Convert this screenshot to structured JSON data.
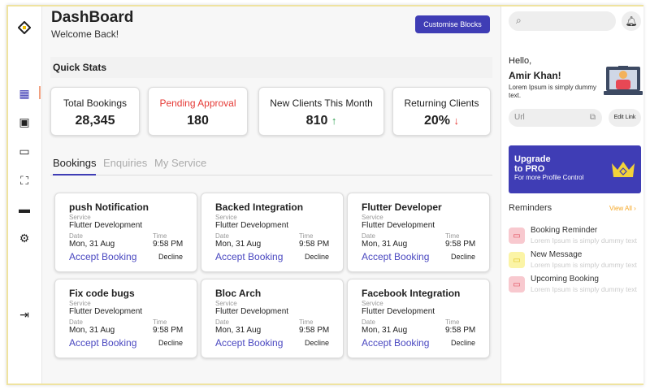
{
  "header": {
    "title": "DashBoard",
    "subtitle": "Welcome Back!",
    "customise_label": "Customise Blocks"
  },
  "sidebar": {
    "items": [
      "logo",
      "dashboard",
      "bookings",
      "calendar",
      "services",
      "messages",
      "settings",
      "logout"
    ],
    "active": "dashboard"
  },
  "quick_stats": {
    "title": "Quick Stats",
    "items": [
      {
        "label": "Total Bookings",
        "value": "28,345",
        "trend": ""
      },
      {
        "label": "Pending Approval",
        "value": "180",
        "trend": ""
      },
      {
        "label": "New Clients This Month",
        "value": "810",
        "trend": "up"
      },
      {
        "label": "Returning Clients",
        "value": "20%",
        "trend": "down"
      }
    ]
  },
  "tabs": [
    {
      "label": "Bookings",
      "active": true
    },
    {
      "label": "Enquiries"
    },
    {
      "label": "My Service"
    }
  ],
  "bookings": [
    {
      "title": "push Notification",
      "service_label": "Service",
      "service": "Flutter Development",
      "date_label": "Date",
      "date": "Mon, 31 Aug",
      "time_label": "Time",
      "time": "9:58 PM",
      "accept": "Accept Booking",
      "decline": "Decline"
    },
    {
      "title": "Backed Integration",
      "service_label": "Service",
      "service": "Flutter Development",
      "date_label": "Date",
      "date": "Mon, 31 Aug",
      "time_label": "Time",
      "time": "9:58 PM",
      "accept": "Accept Booking",
      "decline": "Decline"
    },
    {
      "title": "Flutter Developer",
      "service_label": "Service",
      "service": "Flutter Development",
      "date_label": "Date",
      "date": "Mon, 31 Aug",
      "time_label": "Time",
      "time": "9:58 PM",
      "accept": "Accept Booking",
      "decline": "Decline"
    },
    {
      "title": "Fix code bugs",
      "service_label": "Service",
      "service": "Flutter Development",
      "date_label": "Date",
      "date": "Mon, 31 Aug",
      "time_label": "Time",
      "time": "9:58 PM",
      "accept": "Accept Booking",
      "decline": "Decline"
    },
    {
      "title": "Bloc Arch",
      "service_label": "Service",
      "service": "Flutter Development",
      "date_label": "Date",
      "date": "Mon, 31 Aug",
      "time_label": "Time",
      "time": "9:58 PM",
      "accept": "Accept Booking",
      "decline": "Decline"
    },
    {
      "title": "Facebook Integration",
      "service_label": "Service",
      "service": "Flutter Development",
      "date_label": "Date",
      "date": "Mon, 31 Aug",
      "time_label": "Time",
      "time": "9:58 PM",
      "accept": "Accept Booking",
      "decline": "Decline"
    }
  ],
  "right": {
    "hello": "Hello,",
    "name": "Amir Khan!",
    "desc": "Lorem Ipsum is simply dummy text.",
    "url_placeholder": "Url",
    "edit_link": "Edit Link",
    "upgrade": {
      "title1": "Upgrade",
      "title2": "to PRO",
      "sub": "For more Profile Control"
    },
    "reminders": {
      "title": "Reminders",
      "view_all": "View All",
      "items": [
        {
          "title": "Booking Reminder",
          "desc": "Lorem Ipsum is simply dummy text"
        },
        {
          "title": "New Message",
          "desc": "Lorem Ipsum is simply dummy text"
        },
        {
          "title": "Upcoming Booking",
          "desc": "Lorem Ipsum is simply dummy text"
        }
      ]
    }
  },
  "colors": {
    "accent": "#3f3db5",
    "pending": "#e53935",
    "up": "#2e9e4f",
    "down": "#e53935",
    "view_all": "#f5a623"
  }
}
